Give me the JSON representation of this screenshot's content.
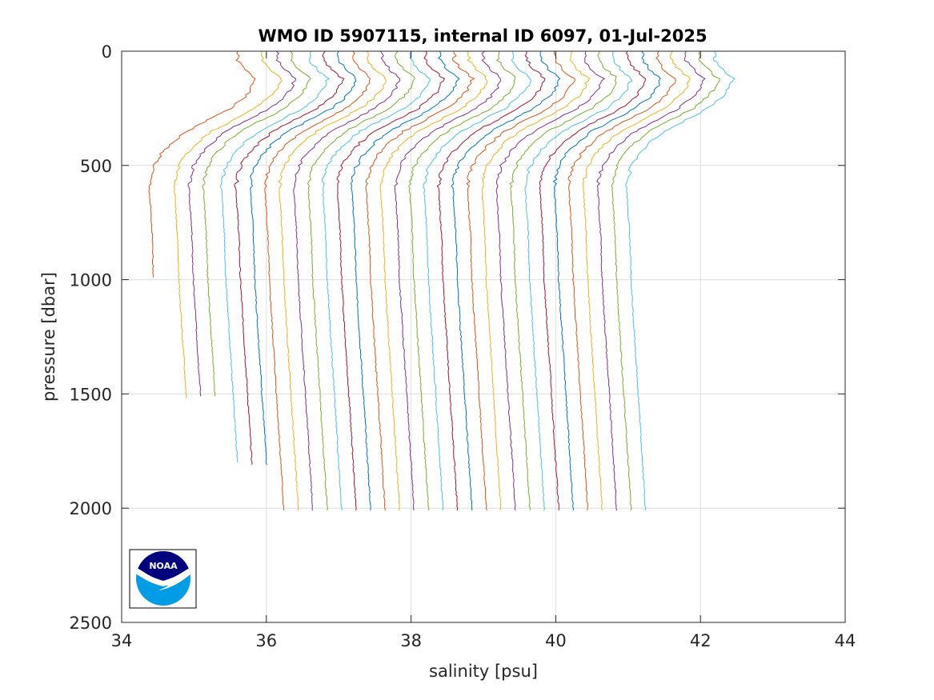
{
  "chart_data": {
    "type": "line",
    "title": "WMO ID 5907115, internal ID 6097, 01-Jul-2025",
    "xlabel": "salinity [psu]",
    "ylabel": "pressure [dbar]",
    "xlim": [
      34,
      44
    ],
    "ylim": [
      0,
      2500
    ],
    "y_reversed": true,
    "grid": true,
    "x_ticks": [
      "34",
      "36",
      "38",
      "40",
      "42",
      "44"
    ],
    "y_ticks": [
      "0",
      "500",
      "1000",
      "1500",
      "2000",
      "2500"
    ],
    "profile_shape": {
      "pressure": [
        0,
        40,
        80,
        120,
        160,
        200,
        250,
        300,
        350,
        400,
        450,
        500,
        550,
        600,
        700,
        800,
        1000,
        1200,
        1400,
        1500,
        1600,
        1800,
        2000
      ],
      "salinity_offset_from_surface": [
        0.0,
        0.0,
        0.1,
        0.25,
        0.2,
        0.1,
        -0.1,
        -0.4,
        -0.7,
        -0.9,
        -1.05,
        -1.15,
        -1.2,
        -1.22,
        -1.2,
        -1.18,
        -1.16,
        -1.12,
        -1.08,
        -1.06,
        -1.04,
        -1.0,
        -0.96
      ]
    },
    "series": [
      {
        "surface_salinity": 35.6,
        "max_pressure": 990,
        "color": "#D95319"
      },
      {
        "surface_salinity": 35.95,
        "max_pressure": 1525,
        "color": "#EDB120"
      },
      {
        "surface_salinity": 36.15,
        "max_pressure": 1510,
        "color": "#7E2F8E"
      },
      {
        "surface_salinity": 36.35,
        "max_pressure": 1510,
        "color": "#77AC30"
      },
      {
        "surface_salinity": 36.6,
        "max_pressure": 1800,
        "color": "#4DBEEE"
      },
      {
        "surface_salinity": 36.8,
        "max_pressure": 1810,
        "color": "#A2142F"
      },
      {
        "surface_salinity": 37.0,
        "max_pressure": 1810,
        "color": "#0072BD"
      },
      {
        "surface_salinity": 37.2,
        "max_pressure": 2010,
        "color": "#D95319"
      },
      {
        "surface_salinity": 37.4,
        "max_pressure": 2010,
        "color": "#EDB120"
      },
      {
        "surface_salinity": 37.6,
        "max_pressure": 2010,
        "color": "#7E2F8E"
      },
      {
        "surface_salinity": 37.8,
        "max_pressure": 2010,
        "color": "#77AC30"
      },
      {
        "surface_salinity": 38.0,
        "max_pressure": 2010,
        "color": "#4DBEEE"
      },
      {
        "surface_salinity": 38.2,
        "max_pressure": 2010,
        "color": "#A2142F"
      },
      {
        "surface_salinity": 38.4,
        "max_pressure": 2010,
        "color": "#0072BD"
      },
      {
        "surface_salinity": 38.6,
        "max_pressure": 2010,
        "color": "#D95319"
      },
      {
        "surface_salinity": 38.8,
        "max_pressure": 2010,
        "color": "#EDB120"
      },
      {
        "surface_salinity": 39.0,
        "max_pressure": 2010,
        "color": "#7E2F8E"
      },
      {
        "surface_salinity": 39.2,
        "max_pressure": 2010,
        "color": "#77AC30"
      },
      {
        "surface_salinity": 39.4,
        "max_pressure": 2010,
        "color": "#4DBEEE"
      },
      {
        "surface_salinity": 39.6,
        "max_pressure": 2010,
        "color": "#A2142F"
      },
      {
        "surface_salinity": 39.8,
        "max_pressure": 2010,
        "color": "#0072BD"
      },
      {
        "surface_salinity": 40.0,
        "max_pressure": 2010,
        "color": "#D95319"
      },
      {
        "surface_salinity": 40.2,
        "max_pressure": 2010,
        "color": "#EDB120"
      },
      {
        "surface_salinity": 40.4,
        "max_pressure": 2010,
        "color": "#7E2F8E"
      },
      {
        "surface_salinity": 40.6,
        "max_pressure": 2010,
        "color": "#77AC30"
      },
      {
        "surface_salinity": 40.8,
        "max_pressure": 2010,
        "color": "#4DBEEE"
      },
      {
        "surface_salinity": 41.0,
        "max_pressure": 2010,
        "color": "#A2142F"
      },
      {
        "surface_salinity": 41.2,
        "max_pressure": 2010,
        "color": "#0072BD"
      },
      {
        "surface_salinity": 41.4,
        "max_pressure": 2010,
        "color": "#D95319"
      },
      {
        "surface_salinity": 41.6,
        "max_pressure": 2010,
        "color": "#EDB120"
      },
      {
        "surface_salinity": 41.8,
        "max_pressure": 2010,
        "color": "#7E2F8E"
      },
      {
        "surface_salinity": 42.0,
        "max_pressure": 2010,
        "color": "#77AC30"
      },
      {
        "surface_salinity": 42.2,
        "max_pressure": 2010,
        "color": "#4DBEEE"
      }
    ]
  },
  "logo": {
    "name": "noaa-logo",
    "text": "NOAA",
    "colors": {
      "dark": "#00007F",
      "light": "#009CE6",
      "border": "#000000"
    }
  }
}
